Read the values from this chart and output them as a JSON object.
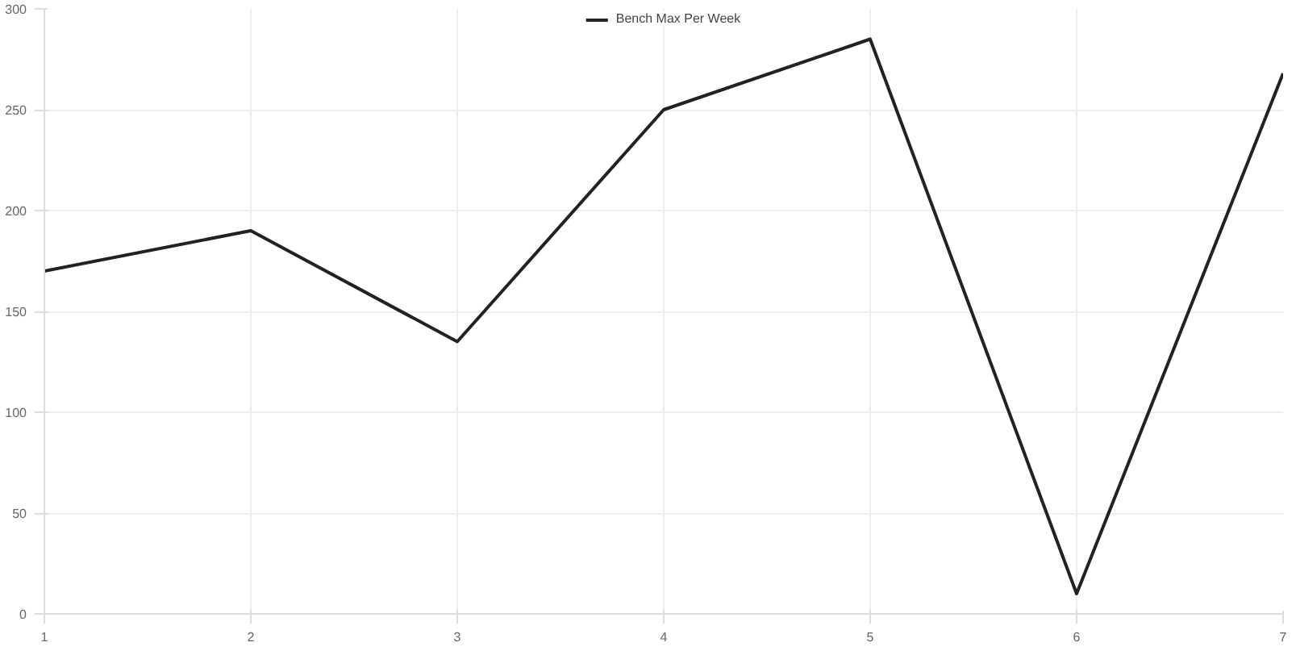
{
  "chart_data": {
    "type": "line",
    "categories": [
      "1",
      "2",
      "3",
      "4",
      "5",
      "6",
      "7"
    ],
    "series": [
      {
        "name": "Bench Max Per Week",
        "color": "#222222",
        "values": [
          170,
          190,
          135,
          250,
          285,
          10,
          268
        ]
      }
    ],
    "ylim": [
      0,
      300
    ],
    "yticks": [
      0,
      50,
      100,
      150,
      200,
      250,
      300
    ],
    "grid": true,
    "legend": "top",
    "marker": "none",
    "line_style": "solid"
  }
}
